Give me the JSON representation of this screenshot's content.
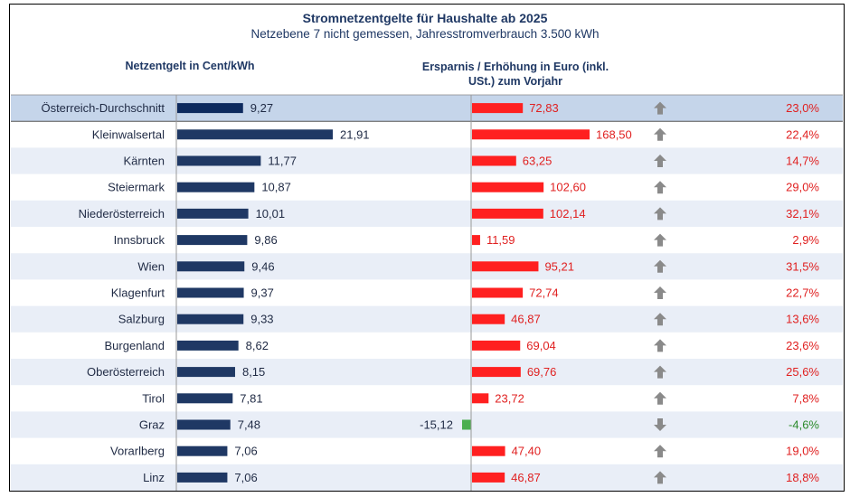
{
  "header": {
    "title": "Stromnetzentgelte  für Haushalte  ab 2025",
    "subtitle": "Netzebene 7 nicht gemessen, Jahresstromverbrauch   3.500 kWh",
    "left_column": "Netzentgelt in Cent/kWh",
    "right_column_line1": "Ersparnis / Erhöhung in Euro (inkl.",
    "right_column_line2": "USt.) zum Vorjahr"
  },
  "colors": {
    "bar_dark": "#1f3864",
    "bar_avg": "#0d2a5e",
    "bar_increase": "#ff2020",
    "bar_decrease": "#4caf50",
    "row_alt": "#e9eef7",
    "row_avg": "#c5d5ea"
  },
  "chart_data": {
    "type": "bar",
    "categories": [
      "Österreich-Durchschnitt",
      "Kleinwalsertal",
      "Kärnten",
      "Steiermark",
      "Niederösterreich",
      "Innsbruck",
      "Wien",
      "Klagenfurt",
      "Salzburg",
      "Burgenland",
      "Oberösterreich",
      "Tirol",
      "Graz",
      "Vorarlberg",
      "Linz"
    ],
    "series": [
      {
        "name": "Netzentgelt in Cent/kWh",
        "values": [
          9.27,
          21.91,
          11.77,
          10.87,
          10.01,
          9.86,
          9.46,
          9.37,
          9.33,
          8.62,
          8.15,
          7.81,
          7.48,
          7.06,
          7.06
        ],
        "labels": [
          "9,27",
          "21,91",
          "11,77",
          "10,87",
          "10,01",
          "9,86",
          "9,46",
          "9,37",
          "9,33",
          "8,62",
          "8,15",
          "7,81",
          "7,48",
          "7,06",
          "7,06"
        ]
      },
      {
        "name": "Ersparnis / Erhöhung in Euro (inkl. USt.) zum Vorjahr",
        "values": [
          72.83,
          168.5,
          63.25,
          102.6,
          102.14,
          11.59,
          95.21,
          72.74,
          46.87,
          69.04,
          69.76,
          23.72,
          -15.12,
          47.4,
          46.87
        ],
        "labels": [
          "72,83",
          "168,50",
          "63,25",
          "102,60",
          "102,14",
          "11,59",
          "95,21",
          "72,74",
          "46,87",
          "69,04",
          "69,76",
          "23,72",
          "-15,12",
          "47,40",
          "46,87"
        ]
      },
      {
        "values": [
          23.0,
          22.4,
          14.7,
          29.0,
          32.1,
          2.9,
          31.5,
          22.7,
          13.6,
          23.6,
          25.6,
          7.8,
          -4.6,
          19.0,
          18.8
        ],
        "labels": [
          "23,0%",
          "22,4%",
          "14,7%",
          "29,0%",
          "32,1%",
          "2,9%",
          "31,5%",
          "22,7%",
          "13,6%",
          "23,6%",
          "25,6%",
          "7,8%",
          "-4,6%",
          "19,0%",
          "18,8%"
        ]
      }
    ],
    "direction": [
      "up",
      "up",
      "up",
      "up",
      "up",
      "up",
      "up",
      "up",
      "up",
      "up",
      "up",
      "up",
      "down",
      "up",
      "up"
    ]
  }
}
